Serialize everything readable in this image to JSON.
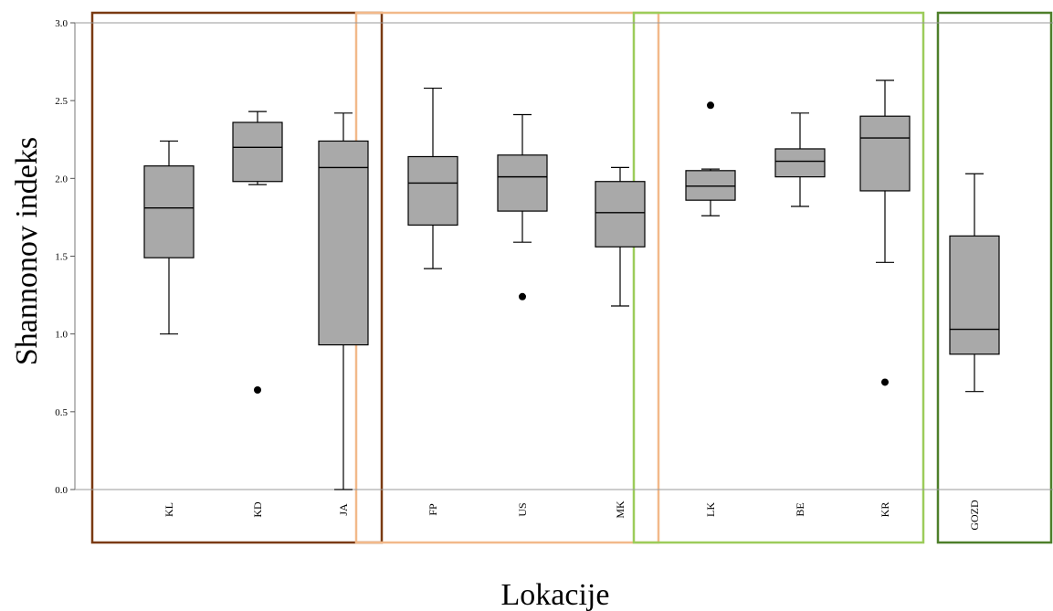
{
  "chart_data": {
    "type": "boxplot",
    "ylabel": "Shannonov indeks",
    "xlabel": "Lokacije",
    "ylim": [
      0.0,
      3.0
    ],
    "yticks": [
      "0.0",
      "0.5",
      "1.0",
      "1.5",
      "2.0",
      "2.5",
      "3.0"
    ],
    "yticks_values": [
      0.0,
      0.5,
      1.0,
      1.5,
      2.0,
      2.5,
      3.0
    ],
    "grid": false,
    "box_fill": "#a9a9a9",
    "outlier_color": "#000000",
    "categories": [
      "KL",
      "KD",
      "JA",
      "FP",
      "US",
      "MK",
      "LK",
      "BE",
      "KR",
      "GOZD"
    ],
    "boxes": [
      {
        "label": "KL",
        "min": 1.0,
        "q1": 1.49,
        "median": 1.81,
        "q3": 2.08,
        "max": 2.24,
        "outliers": []
      },
      {
        "label": "KD",
        "min": 1.96,
        "q1": 1.98,
        "median": 2.2,
        "q3": 2.36,
        "max": 2.43,
        "outliers": [
          0.64
        ]
      },
      {
        "label": "JA",
        "min": 0.0,
        "q1": 0.93,
        "median": 2.07,
        "q3": 2.24,
        "max": 2.42,
        "outliers": []
      },
      {
        "label": "FP",
        "min": 1.42,
        "q1": 1.7,
        "median": 1.97,
        "q3": 2.14,
        "max": 2.58,
        "outliers": []
      },
      {
        "label": "US",
        "min": 1.59,
        "q1": 1.79,
        "median": 2.01,
        "q3": 2.15,
        "max": 2.41,
        "outliers": [
          1.24
        ]
      },
      {
        "label": "MK",
        "min": 1.18,
        "q1": 1.56,
        "median": 1.78,
        "q3": 1.98,
        "max": 2.07,
        "outliers": []
      },
      {
        "label": "LK",
        "min": 1.76,
        "q1": 1.86,
        "median": 1.95,
        "q3": 2.05,
        "max": 2.06,
        "outliers": [
          2.47
        ]
      },
      {
        "label": "BE",
        "min": 1.82,
        "q1": 2.01,
        "median": 2.11,
        "q3": 2.19,
        "max": 2.42,
        "outliers": []
      },
      {
        "label": "KR",
        "min": 1.46,
        "q1": 1.92,
        "median": 2.26,
        "q3": 2.4,
        "max": 2.63,
        "outliers": [
          0.69
        ]
      },
      {
        "label": "GOZD",
        "min": 0.63,
        "q1": 0.87,
        "median": 1.03,
        "q3": 1.63,
        "max": 2.03,
        "outliers": []
      }
    ],
    "groups": [
      {
        "members": [
          "KL",
          "KD",
          "JA"
        ],
        "color": "#7a3a12"
      },
      {
        "members": [
          "FP",
          "US",
          "MK"
        ],
        "color": "#f2b98a"
      },
      {
        "members": [
          "LK",
          "BE",
          "KR"
        ],
        "color": "#9ccc5a"
      },
      {
        "members": [
          "GOZD"
        ],
        "color": "#4e7f2a"
      }
    ]
  }
}
